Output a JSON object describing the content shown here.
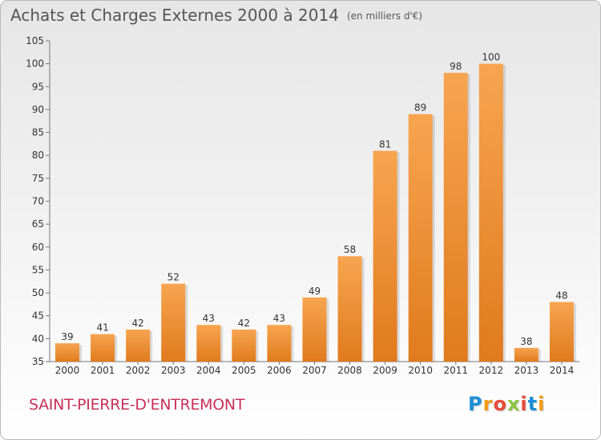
{
  "title": "Achats et Charges Externes 2000 à 2014",
  "unit": "(en milliers d'€)",
  "commune": "SAINT-PIERRE-D'ENTREMONT",
  "logo": {
    "letters": [
      "P",
      "r",
      "o",
      "x",
      "i",
      "t",
      "i"
    ],
    "colors": [
      "#1b8fd6",
      "#f39c12",
      "#e74c3c",
      "#8dc63f",
      "#e74c3c",
      "#1b8fd6",
      "#f39c12"
    ]
  },
  "colors": {
    "bar_light": "#f7a550",
    "bar_dark": "#e07a1d",
    "title": "#555555",
    "commune": "#c8325c"
  },
  "chart_data": {
    "type": "bar",
    "categories": [
      "2000",
      "2001",
      "2002",
      "2003",
      "2004",
      "2005",
      "2006",
      "2007",
      "2008",
      "2009",
      "2010",
      "2011",
      "2012",
      "2013",
      "2014"
    ],
    "values": [
      39,
      41,
      42,
      52,
      43,
      42,
      43,
      49,
      58,
      81,
      89,
      98,
      100,
      38,
      48
    ],
    "title": "Achats et Charges Externes 2000 à 2014",
    "xlabel": "",
    "ylabel": "",
    "ylim": [
      35,
      105
    ],
    "yticks": [
      35,
      40,
      45,
      50,
      55,
      60,
      65,
      70,
      75,
      80,
      85,
      90,
      95,
      100,
      105
    ],
    "grid": false,
    "data_labels": true
  }
}
